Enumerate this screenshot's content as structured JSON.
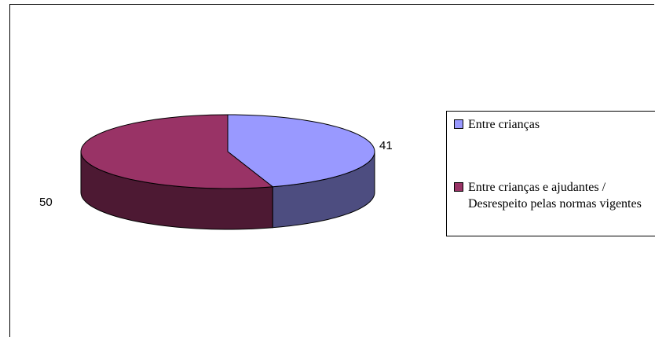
{
  "chart_data": {
    "type": "pie",
    "categories": [
      "Entre crianças",
      "Entre crianças e ajudantes / Desrespeito pelas normas vigentes"
    ],
    "values": [
      41,
      50
    ],
    "data_labels": [
      "41",
      "50"
    ],
    "title": "",
    "legend_position": "right",
    "colors": {
      "top": [
        "#9999ff",
        "#993366"
      ],
      "side": [
        "#4d4d80",
        "#4d1933"
      ]
    }
  }
}
